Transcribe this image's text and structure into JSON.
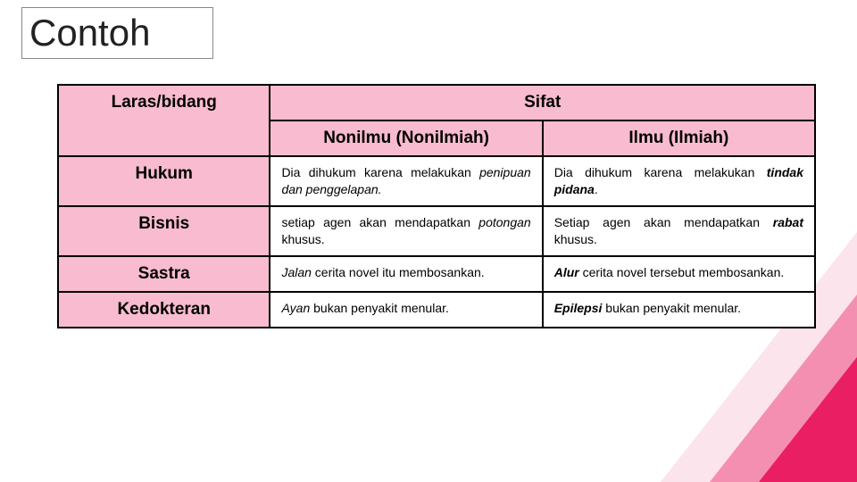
{
  "slide": {
    "title": "Contoh",
    "background_color": "#ffffff",
    "title_fontsize": 42,
    "header_bg": "#f8bbd0",
    "border_color": "#000000",
    "triangle_colors": [
      "#fce4ec",
      "#f48fb1",
      "#e91e63"
    ]
  },
  "table": {
    "header_top_left": "Laras/bidang",
    "header_top_right": "Sifat",
    "subheader_left": "Nonilmu (Nonilmiah)",
    "subheader_right": "Ilmu (Ilmiah)",
    "rows": [
      {
        "label": "Hukum",
        "nonilmu_html": "Dia dihukum karena melakukan <span class=\"italic\">penipuan dan penggelapan.</span>",
        "ilmiah_html": "Dia dihukum karena melakukan <span class=\"bolditalic\">tindak pidana</span>."
      },
      {
        "label": "Bisnis",
        "nonilmu_html": "setiap agen akan mendapatkan <span class=\"italic\">potongan</span> khusus.",
        "ilmiah_html": "Setiap agen akan mendapatkan <span class=\"bolditalic\">rabat</span> khusus."
      },
      {
        "label": "Sastra",
        "nonilmu_html": "<span class=\"italic\">Jalan</span> cerita novel itu membosankan.",
        "ilmiah_html": "<span class=\"bolditalic\">Alur</span> cerita novel tersebut membosankan."
      },
      {
        "label": "Kedokteran",
        "nonilmu_html": "<span class=\"italic\">Ayan</span> bukan penyakit menular.",
        "ilmiah_html": "<span class=\"bolditalic\">Epilepsi</span> bukan penyakit menular."
      }
    ]
  }
}
